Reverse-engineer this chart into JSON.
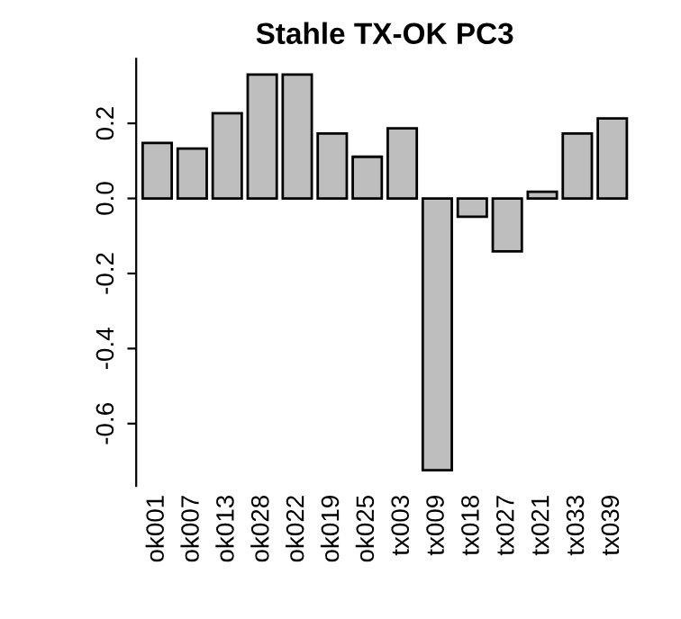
{
  "chart_data": {
    "type": "bar",
    "title": "Stahle TX-OK PC3",
    "categories": [
      "ok001",
      "ok007",
      "ok013",
      "ok028",
      "ok022",
      "ok019",
      "ok025",
      "tx003",
      "tx009",
      "tx018",
      "tx027",
      "tx021",
      "tx033",
      "tx039"
    ],
    "values": [
      0.148,
      0.133,
      0.227,
      0.33,
      0.33,
      0.173,
      0.111,
      0.187,
      -0.724,
      -0.049,
      -0.141,
      0.018,
      0.173,
      0.213
    ],
    "color": "#bebebe",
    "ylim": [
      -0.766,
      0.372
    ],
    "yticks": [
      -0.6,
      -0.4,
      -0.2,
      {
        "value": 0,
        "label": "0.0"
      },
      0.2
    ],
    "grid": false,
    "legend": false
  }
}
